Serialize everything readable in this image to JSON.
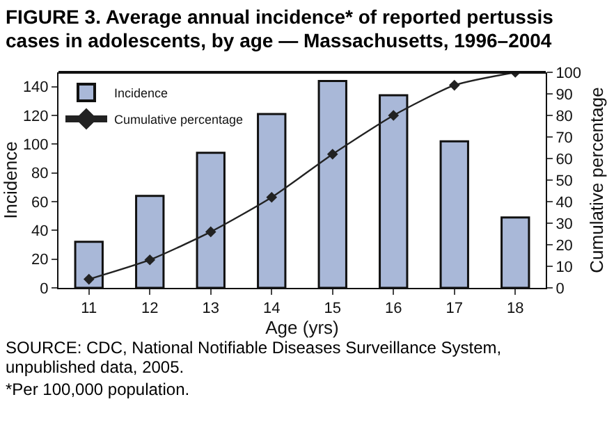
{
  "chart_data": {
    "type": "bar",
    "title": "FIGURE 3. Average annual incidence* of reported pertussis cases in adolescents, by age — Massachusetts, 1996–2004",
    "categories": [
      "11",
      "12",
      "13",
      "14",
      "15",
      "16",
      "17",
      "18"
    ],
    "series": [
      {
        "name": "Incidence",
        "color": "#a9b8d8",
        "values": [
          32,
          64,
          94,
          121,
          144,
          134,
          102,
          49
        ]
      },
      {
        "name": "Cumulative percentage",
        "type": "line",
        "axis": "y2",
        "color": "#222222",
        "marker": "diamond",
        "values": [
          4,
          13,
          26,
          42,
          62,
          80,
          94,
          100
        ]
      }
    ],
    "xlabel": "Age (yrs)",
    "ylabel": "Incidence",
    "y2label": "Cumulative percentage",
    "ylim": [
      0,
      150
    ],
    "yticks": [
      0,
      20,
      40,
      60,
      80,
      100,
      120,
      140
    ],
    "y2lim": [
      0,
      100
    ],
    "y2ticks": [
      0,
      10,
      20,
      30,
      40,
      50,
      60,
      70,
      80,
      90,
      100
    ],
    "legend": "top left",
    "grid": false,
    "annotations": [
      "SOURCE: CDC, National Notifiable Diseases Surveillance System, unpublished data, 2005.",
      "*Per 100,000 population."
    ]
  }
}
